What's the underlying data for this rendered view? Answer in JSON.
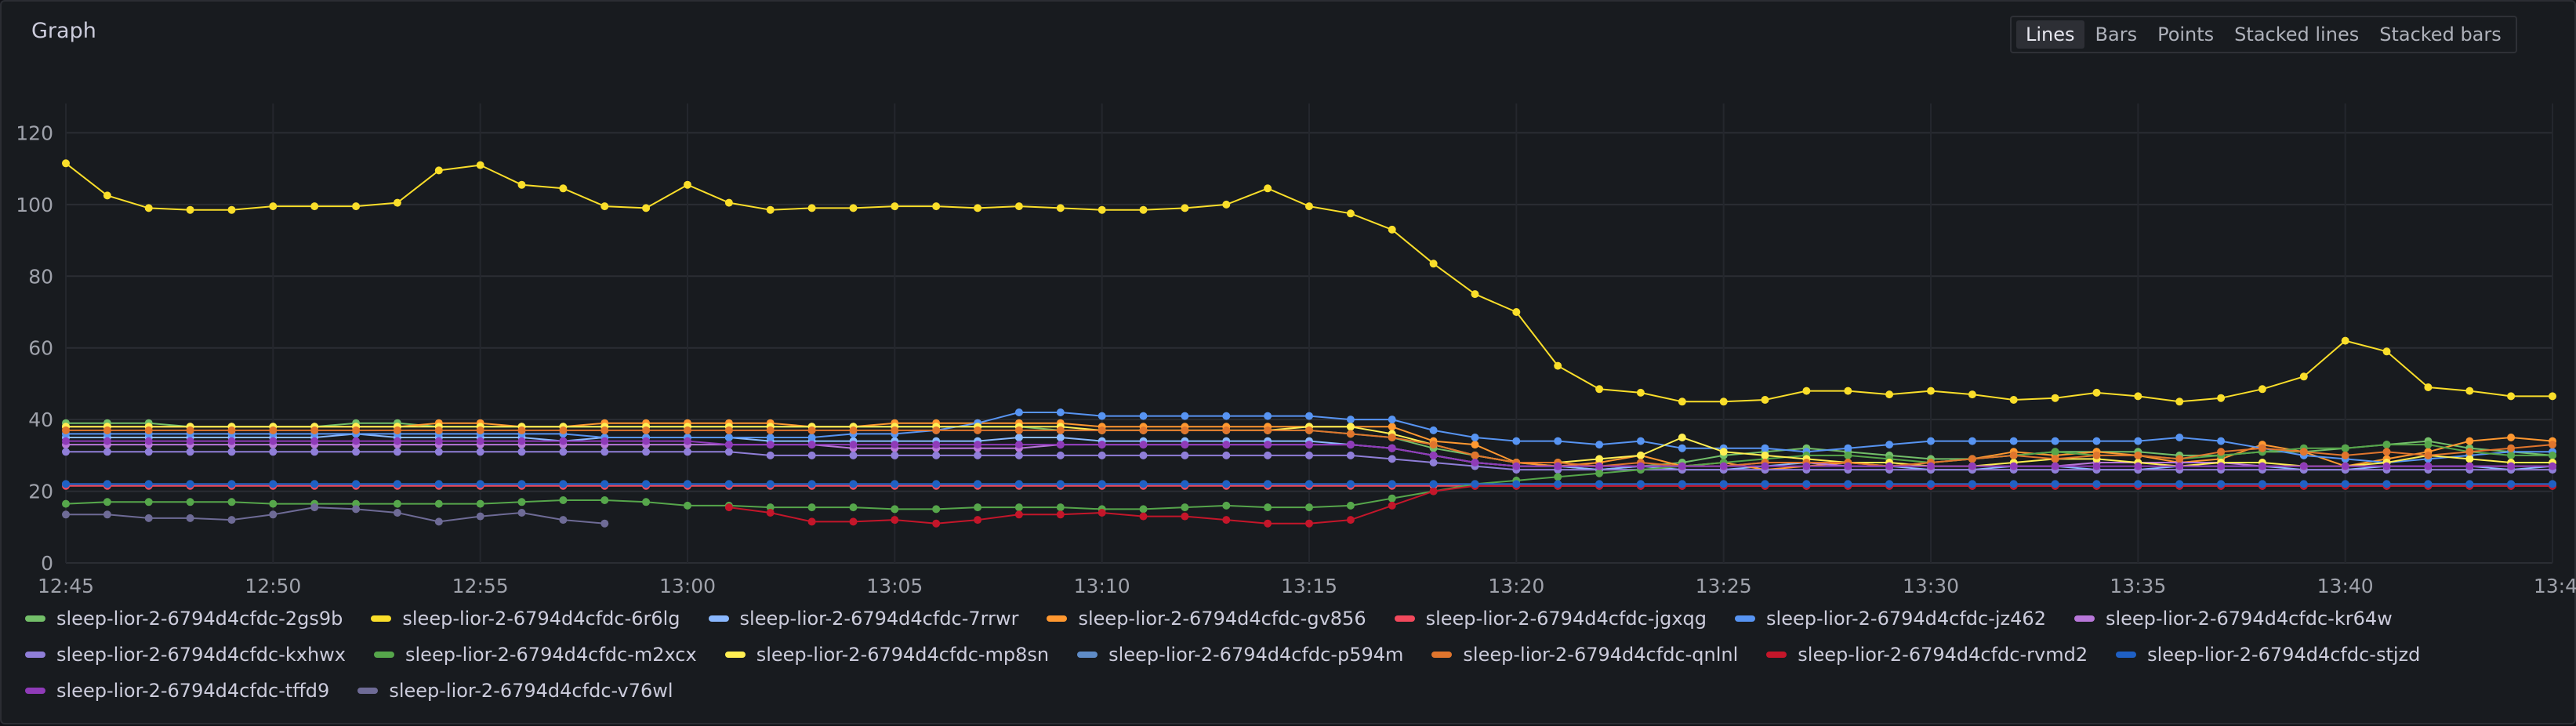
{
  "panel": {
    "title": "Graph",
    "view_options": [
      "Lines",
      "Bars",
      "Points",
      "Stacked lines",
      "Stacked bars"
    ],
    "selected_view": "Lines"
  },
  "chart_data": {
    "type": "line",
    "title": "",
    "xlabel": "",
    "ylabel": "",
    "x_axis": "time",
    "x_ticks": [
      "12:45",
      "12:50",
      "12:55",
      "13:00",
      "13:05",
      "13:10",
      "13:15",
      "13:20",
      "13:25",
      "13:30",
      "13:35",
      "13:40",
      "13:4"
    ],
    "y_ticks": [
      0,
      20,
      40,
      60,
      80,
      100,
      120
    ],
    "ylim": [
      0,
      126
    ],
    "xlim": [
      "12:45",
      "13:45"
    ],
    "grid": true,
    "legend_position": "bottom",
    "x": [
      "12:45",
      "12:46",
      "12:47",
      "12:48",
      "12:49",
      "12:50",
      "12:51",
      "12:52",
      "12:53",
      "12:54",
      "12:55",
      "12:56",
      "12:57",
      "12:58",
      "12:59",
      "13:00",
      "13:01",
      "13:02",
      "13:03",
      "13:04",
      "13:05",
      "13:06",
      "13:07",
      "13:08",
      "13:09",
      "13:10",
      "13:11",
      "13:12",
      "13:13",
      "13:14",
      "13:15",
      "13:16",
      "13:17",
      "13:18",
      "13:19",
      "13:20",
      "13:21",
      "13:22",
      "13:23",
      "13:24",
      "13:25",
      "13:26",
      "13:27",
      "13:28",
      "13:29",
      "13:30",
      "13:31",
      "13:32",
      "13:33",
      "13:34",
      "13:35",
      "13:36",
      "13:37",
      "13:38",
      "13:39",
      "13:40",
      "13:41",
      "13:42",
      "13:43",
      "13:44",
      "13:45"
    ],
    "series": [
      {
        "name": "sleep-lior-2-6794d4cfdc-2gs9b",
        "color": "#73bf69",
        "values": [
          39,
          39,
          39,
          38,
          38,
          38,
          38,
          39,
          39,
          38,
          38,
          38,
          38,
          38,
          38,
          38,
          38,
          38,
          38,
          38,
          38,
          38,
          38,
          38,
          37,
          37,
          37,
          37,
          37,
          37,
          37,
          36,
          35,
          32,
          30,
          28,
          27,
          26,
          27,
          28,
          30,
          31,
          32,
          31,
          30,
          29,
          29,
          30,
          31,
          31,
          31,
          30,
          30,
          31,
          31,
          32,
          33,
          34,
          32,
          31,
          30
        ]
      },
      {
        "name": "sleep-lior-2-6794d4cfdc-6r6lg",
        "color": "#fade2a",
        "values": [
          111.5,
          102.5,
          99,
          98.5,
          98.5,
          99.5,
          99.5,
          99.5,
          100.5,
          109.5,
          111,
          105.5,
          104.5,
          99.5,
          99,
          105.5,
          100.5,
          98.5,
          99,
          99,
          99.5,
          99.5,
          99,
          99.5,
          99,
          98.5,
          98.5,
          99,
          100,
          104.5,
          99.5,
          97.5,
          93,
          83.5,
          75,
          70,
          55,
          48.5,
          47.5,
          45,
          45,
          45.5,
          48,
          48,
          47,
          48,
          47,
          45.5,
          46,
          47.5,
          46.5,
          45,
          46,
          48.5,
          52,
          62,
          59,
          49,
          48,
          46.5,
          46.5
        ]
      },
      {
        "name": "sleep-lior-2-6794d4cfdc-7rrwr",
        "color": "#8ab8ff",
        "values": [
          35,
          35,
          35,
          35,
          35,
          35,
          35,
          36,
          35,
          35,
          35,
          35,
          34,
          35,
          35,
          35,
          35,
          34,
          34,
          34,
          34,
          34,
          34,
          35,
          35,
          34,
          34,
          34,
          34,
          34,
          34,
          33,
          32,
          30,
          28,
          27,
          27,
          26,
          27,
          26,
          26,
          27,
          28,
          27,
          27,
          26,
          26,
          27,
          27,
          26,
          26,
          27,
          27,
          27,
          26,
          26,
          27,
          27,
          27,
          26,
          27
        ]
      },
      {
        "name": "sleep-lior-2-6794d4cfdc-gv856",
        "color": "#ff9830",
        "values": [
          38,
          38,
          38,
          38,
          38,
          38,
          38,
          38,
          38,
          39,
          39,
          38,
          38,
          39,
          39,
          39,
          39,
          39,
          38,
          38,
          39,
          39,
          39,
          39,
          39,
          38,
          38,
          38,
          38,
          38,
          38,
          38,
          38,
          34,
          33,
          28,
          27,
          28,
          30,
          27,
          28,
          26,
          27,
          28,
          27,
          28,
          29,
          31,
          30,
          31,
          30,
          28,
          29,
          33,
          31,
          27,
          29,
          31,
          34,
          35,
          34
        ]
      },
      {
        "name": "sleep-lior-2-6794d4cfdc-jgxqg",
        "color": "#f2495c",
        "values": [
          21.5,
          21.5,
          21.5,
          21.5,
          21.5,
          21.5,
          21.5,
          21.5,
          21.5,
          21.5,
          21.5,
          21.5,
          21.5,
          21.5,
          21.5,
          21.5,
          21.5,
          21.5,
          21.5,
          21.5,
          21.5,
          21.5,
          21.5,
          21.5,
          21.5,
          21.5,
          21.5,
          21.5,
          21.5,
          21.5,
          21.5,
          21.5,
          21.5,
          21.5,
          21.5,
          21.5,
          21.5,
          21.5,
          21.5,
          21.5,
          21.5,
          21.5,
          21.5,
          21.5,
          21.5,
          21.5,
          21.5,
          21.5,
          21.5,
          21.5,
          21.5,
          21.5,
          21.5,
          21.5,
          21.5,
          21.5,
          21.5,
          21.5,
          21.5,
          21.5,
          21.5
        ]
      },
      {
        "name": "sleep-lior-2-6794d4cfdc-jz462",
        "color": "#5794f2",
        "values": [
          36,
          36,
          36,
          36,
          36,
          36,
          36,
          36,
          36,
          36,
          36,
          36,
          36,
          35,
          35,
          35,
          35,
          35,
          35,
          36,
          36,
          37,
          39,
          42,
          42,
          41,
          41,
          41,
          41,
          41,
          41,
          40,
          40,
          37,
          35,
          34,
          34,
          33,
          34,
          32,
          32,
          32,
          31,
          32,
          33,
          34,
          34,
          34,
          34,
          34,
          34,
          35,
          34,
          32,
          30,
          29,
          28,
          29,
          30,
          31,
          31
        ]
      },
      {
        "name": "sleep-lior-2-6794d4cfdc-kr64w",
        "color": "#b877d9",
        "values": [
          33,
          33,
          33,
          33,
          33,
          33,
          33,
          33,
          33,
          33,
          33,
          33,
          33,
          33,
          33,
          33,
          33,
          33,
          33,
          32,
          32,
          32,
          32,
          32,
          33,
          33,
          33,
          33,
          33,
          33,
          33,
          33,
          32,
          30,
          28,
          27,
          27,
          27,
          27,
          27,
          27,
          28,
          28,
          27,
          27,
          27,
          27,
          27,
          27,
          28,
          28,
          28,
          28,
          27,
          27,
          27,
          27,
          27,
          27,
          27,
          27
        ]
      },
      {
        "name": "sleep-lior-2-6794d4cfdc-kxhwx",
        "color": "#8f7ed8",
        "values": [
          31,
          31,
          31,
          31,
          31,
          31,
          31,
          31,
          31,
          31,
          31,
          31,
          31,
          31,
          31,
          31,
          31,
          30,
          30,
          30,
          30,
          30,
          30,
          30,
          30,
          30,
          30,
          30,
          30,
          30,
          30,
          30,
          29,
          28,
          27,
          26,
          26,
          26,
          26,
          26,
          26,
          26,
          26,
          26,
          26,
          26,
          26,
          26,
          26,
          26,
          26,
          26,
          26,
          26,
          26,
          26,
          26,
          26,
          26,
          26,
          26
        ]
      },
      {
        "name": "sleep-lior-2-6794d4cfdc-m2xcx",
        "color": "#56a64b",
        "values": [
          16.5,
          17,
          17,
          17,
          17,
          16.5,
          16.5,
          16.5,
          16.5,
          16.5,
          16.5,
          17,
          17.5,
          17.5,
          17,
          16,
          16,
          15.5,
          15.5,
          15.5,
          15,
          15,
          15.5,
          15.5,
          15.5,
          15,
          15,
          15.5,
          16,
          15.5,
          15.5,
          16,
          18,
          20,
          22,
          23,
          24,
          25,
          26,
          27,
          28,
          29,
          30,
          30,
          29,
          28,
          29,
          30,
          31,
          30,
          30,
          29,
          30,
          31,
          32,
          32,
          33,
          33,
          31,
          30,
          30
        ]
      },
      {
        "name": "sleep-lior-2-6794d4cfdc-mp8sn",
        "color": "#ffee52",
        "values": [
          38,
          38,
          38,
          38,
          38,
          38,
          38,
          38,
          38,
          38,
          38,
          38,
          38,
          38,
          38,
          38,
          38,
          38,
          38,
          38,
          38,
          38,
          38,
          38,
          38,
          37,
          37,
          37,
          37,
          37,
          38,
          38,
          36,
          33,
          30,
          28,
          28,
          29,
          30,
          35,
          31,
          30,
          29,
          28,
          28,
          27,
          27,
          28,
          29,
          29,
          28,
          27,
          28,
          28,
          27,
          27,
          28,
          30,
          29,
          28,
          28
        ]
      },
      {
        "name": "sleep-lior-2-6794d4cfdc-p594m",
        "color": "#5f8cc7",
        "values": [
          22,
          22,
          22,
          22,
          22,
          22,
          22,
          22,
          22,
          22,
          22,
          22,
          22,
          22,
          22,
          22,
          22,
          22,
          22,
          22,
          22,
          22,
          22,
          22,
          22,
          22,
          22,
          22,
          22,
          22,
          22,
          22,
          22,
          22,
          22,
          22,
          22,
          22,
          22,
          22,
          22,
          22,
          22,
          22,
          22,
          22,
          22,
          22,
          22,
          22,
          22,
          22,
          22,
          22,
          22,
          22,
          22,
          22,
          22,
          22,
          22
        ]
      },
      {
        "name": "sleep-lior-2-6794d4cfdc-qnlnl",
        "color": "#e0752d",
        "values": [
          37,
          37,
          37,
          37,
          37,
          37,
          37,
          37,
          37,
          37,
          37,
          37,
          37,
          37,
          37,
          37,
          37,
          37,
          37,
          37,
          37,
          37,
          37,
          37,
          37,
          37,
          37,
          37,
          37,
          37,
          37,
          36,
          35,
          33,
          30,
          28,
          28,
          27,
          28,
          27,
          27,
          28,
          28,
          28,
          27,
          28,
          29,
          30,
          29,
          30,
          30,
          29,
          31,
          32,
          31,
          30,
          31,
          30,
          31,
          32,
          33
        ]
      },
      {
        "name": "sleep-lior-2-6794d4cfdc-rvmd2",
        "color": "#c4162a",
        "values": [
          null,
          null,
          null,
          null,
          null,
          null,
          null,
          null,
          null,
          null,
          null,
          null,
          null,
          null,
          null,
          null,
          15.5,
          14,
          11.5,
          11.5,
          12,
          11,
          12,
          13.5,
          13.5,
          14,
          13,
          13,
          12,
          11,
          11,
          12,
          16,
          20,
          21.5,
          21.5,
          21.5,
          21.5,
          21.5,
          21.5,
          21.5,
          21.5,
          21.5,
          21.5,
          21.5,
          21.5,
          21.5,
          21.5,
          21.5,
          21.5,
          21.5,
          21.5,
          21.5,
          21.5,
          21.5,
          21.5,
          21.5,
          21.5,
          21.5,
          21.5,
          21.5
        ]
      },
      {
        "name": "sleep-lior-2-6794d4cfdc-stjzd",
        "color": "#1f60c4",
        "values": [
          22,
          22,
          22,
          22,
          22,
          22,
          22,
          22,
          22,
          22,
          22,
          22,
          22,
          22,
          22,
          22,
          22,
          22,
          22,
          22,
          22,
          22,
          22,
          22,
          22,
          22,
          22,
          22,
          22,
          22,
          22,
          22,
          22,
          22,
          22,
          22,
          22,
          22,
          22,
          22,
          22,
          22,
          22,
          22,
          22,
          22,
          22,
          22,
          22,
          22,
          22,
          22,
          22,
          22,
          22,
          22,
          22,
          22,
          22,
          22,
          22
        ]
      },
      {
        "name": "sleep-lior-2-6794d4cfdc-tffd9",
        "color": "#8f3bb8",
        "values": [
          34,
          34,
          34,
          34,
          34,
          34,
          34,
          34,
          34,
          34,
          34,
          34,
          34,
          34,
          34,
          34,
          33,
          33,
          33,
          33,
          33,
          33,
          33,
          33,
          33,
          33,
          33,
          33,
          33,
          33,
          33,
          33,
          32,
          30,
          28,
          27,
          27,
          27,
          27,
          27,
          27,
          27,
          27,
          27,
          27,
          27,
          27,
          27,
          27,
          27,
          27,
          27,
          27,
          27,
          27,
          27,
          27,
          27,
          27,
          27,
          27
        ]
      },
      {
        "name": "sleep-lior-2-6794d4cfdc-v76wl",
        "color": "#6e6b96",
        "values": [
          13.5,
          13.5,
          12.5,
          12.5,
          12,
          13.5,
          15.5,
          15,
          14,
          11.5,
          13,
          14,
          12,
          11,
          null,
          null,
          null,
          null,
          null,
          null,
          null,
          null,
          null,
          null,
          null,
          null,
          null,
          null,
          null,
          null,
          null,
          null,
          null,
          null,
          null,
          null,
          null,
          null,
          null,
          null,
          null,
          null,
          null,
          null,
          null,
          null,
          null,
          null,
          null,
          null,
          null,
          null,
          null,
          null,
          null,
          null,
          null,
          null,
          null,
          null,
          null
        ]
      }
    ]
  }
}
